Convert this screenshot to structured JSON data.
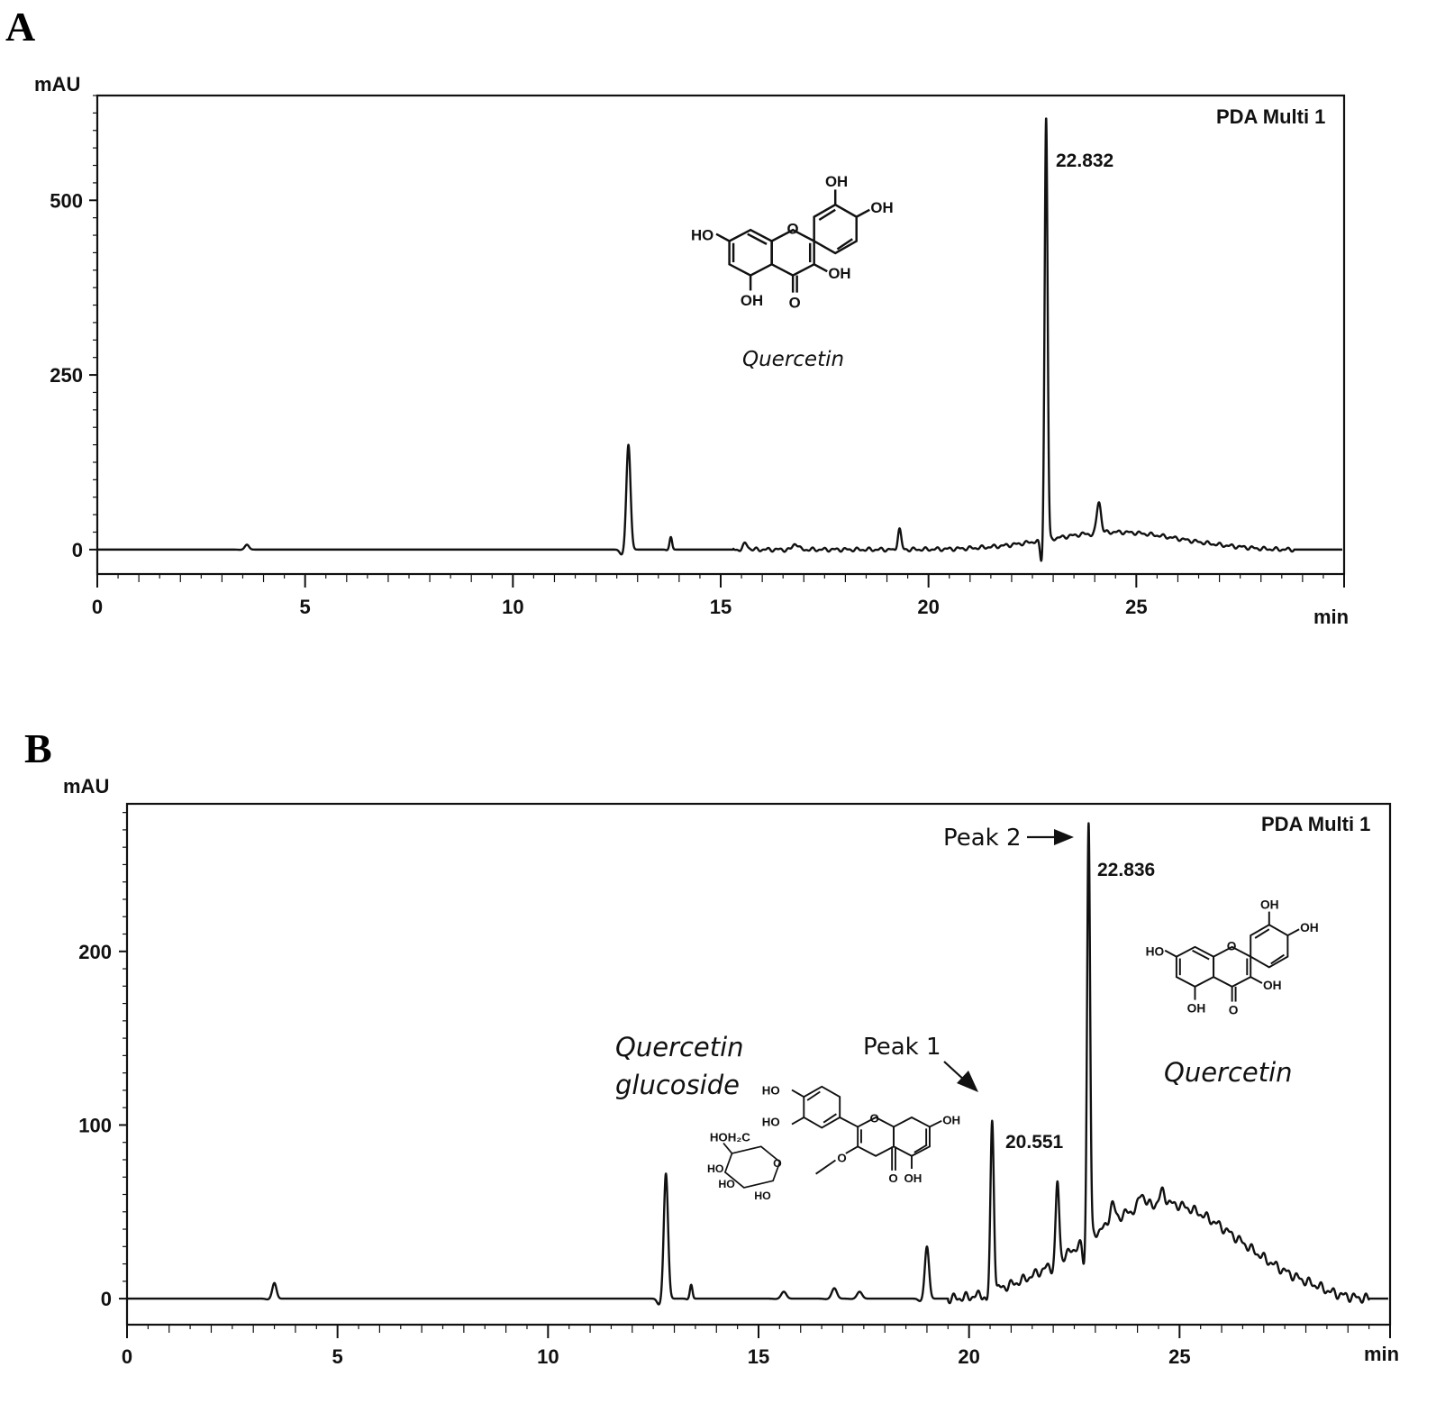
{
  "chart_data": [
    {
      "type": "line",
      "panel": "A",
      "ylabel": "mAU",
      "xlabel": "min",
      "detector": "PDA Multi 1",
      "xlim": [
        0,
        30
      ],
      "ylim": [
        -35,
        650
      ],
      "xticks": [
        0,
        5,
        10,
        15,
        20,
        25
      ],
      "yticks": [
        0,
        250,
        500
      ],
      "peaks": [
        {
          "rt": 3.6,
          "height": 7,
          "width": 0.05
        },
        {
          "rt": 12.78,
          "height": 150,
          "width": 0.05
        },
        {
          "rt": 13.8,
          "height": 18,
          "width": 0.03
        },
        {
          "rt": 15.6,
          "height": 8,
          "width": 0.06
        },
        {
          "rt": 16.8,
          "height": 9,
          "width": 0.06
        },
        {
          "rt": 19.3,
          "height": 30,
          "width": 0.04
        },
        {
          "rt": 22.83,
          "height": 605,
          "width": 0.035
        },
        {
          "rt": 24.1,
          "height": 45,
          "width": 0.05
        }
      ],
      "baseline_hump": {
        "center": 24.5,
        "height": 25,
        "width": 2.2,
        "start": 15.3,
        "end": 28.8
      },
      "annotations": {
        "rt_label": "22.832",
        "compound": "Quercetin"
      }
    },
    {
      "type": "line",
      "panel": "B",
      "ylabel": "mAU",
      "xlabel": "min",
      "detector": "PDA Multi 1",
      "xlim": [
        0,
        30
      ],
      "ylim": [
        -15,
        285
      ],
      "xticks": [
        0,
        5,
        10,
        15,
        20,
        25
      ],
      "yticks": [
        0,
        100,
        200
      ],
      "peaks": [
        {
          "rt": 3.5,
          "height": 9,
          "width": 0.05
        },
        {
          "rt": 12.8,
          "height": 72,
          "width": 0.05
        },
        {
          "rt": 13.4,
          "height": 8,
          "width": 0.03
        },
        {
          "rt": 15.6,
          "height": 4,
          "width": 0.06
        },
        {
          "rt": 16.8,
          "height": 6,
          "width": 0.06
        },
        {
          "rt": 17.4,
          "height": 4,
          "width": 0.06
        },
        {
          "rt": 19.0,
          "height": 30,
          "width": 0.05
        },
        {
          "rt": 20.55,
          "height": 98,
          "width": 0.04
        },
        {
          "rt": 22.1,
          "height": 45,
          "width": 0.04
        },
        {
          "rt": 22.84,
          "height": 240,
          "width": 0.035
        },
        {
          "rt": 23.4,
          "height": 10,
          "width": 0.06
        },
        {
          "rt": 24.1,
          "height": 8,
          "width": 0.06
        },
        {
          "rt": 24.6,
          "height": 7,
          "width": 0.06
        }
      ],
      "baseline_hump": {
        "center": 24.6,
        "height": 55,
        "width": 2.6,
        "start": 19.5,
        "end": 29.5
      },
      "annotations": {
        "rt_label_1": "20.551",
        "rt_label_2": "22.836",
        "peak1": "Peak 1",
        "peak2": "Peak 2",
        "compound_1_line1": "Quercetin",
        "compound_1_line2": "glucoside",
        "compound_2": "Quercetin"
      }
    }
  ],
  "labels": {
    "panel_a": "A",
    "panel_b": "B"
  },
  "structure_labels": {
    "oh": "OH",
    "ho": "HO",
    "o": "O",
    "hoh2c": "HOH₂C"
  }
}
